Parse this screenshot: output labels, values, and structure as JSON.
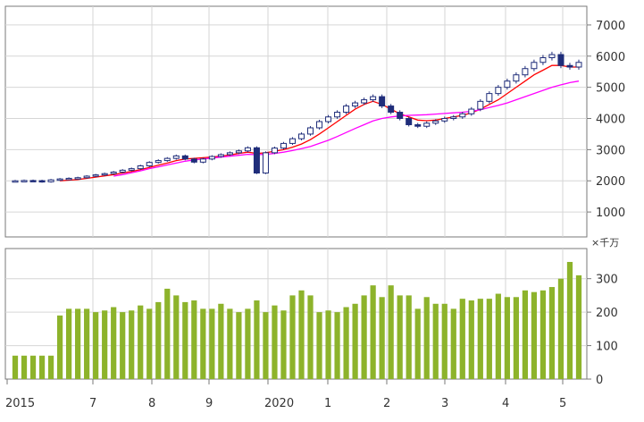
{
  "chart_data": [
    {
      "type": "candlestick",
      "title": "",
      "y_ticks": [
        "7000",
        "6000",
        "5000",
        "4000",
        "3000",
        "2000",
        "1000"
      ],
      "y_tick_values": [
        7000,
        6000,
        5000,
        4000,
        3000,
        2000,
        1000
      ],
      "ylim": [
        200,
        7600
      ],
      "grid": true,
      "x_tick_labels": [
        "2015",
        "7",
        "8",
        "9",
        "2020",
        "1",
        "2",
        "3",
        "4",
        "5"
      ],
      "price_close": [
        2000,
        2010,
        2005,
        1970,
        2030,
        2060,
        2080,
        2100,
        2150,
        2190,
        2230,
        2280,
        2340,
        2390,
        2480,
        2590,
        2650,
        2720,
        2800,
        2700,
        2600,
        2700,
        2780,
        2840,
        2900,
        2960,
        3060,
        2250,
        2900,
        3050,
        3200,
        3350,
        3500,
        3700,
        3900,
        4050,
        4200,
        4400,
        4500,
        4600,
        4700,
        4400,
        4200,
        4000,
        3800,
        3750,
        3850,
        3920,
        4000,
        4050,
        4150,
        4300,
        4550,
        4800,
        5000,
        5200,
        5400,
        5600,
        5800,
        5950,
        6050,
        5700,
        5650,
        5800
      ],
      "series": [
        {
          "name": "",
          "color": "#ff0000",
          "values": [
            null,
            null,
            null,
            null,
            null,
            2000,
            2020,
            2040,
            2080,
            2120,
            2160,
            2200,
            2250,
            2300,
            2360,
            2430,
            2500,
            2570,
            2650,
            2700,
            2720,
            2740,
            2760,
            2790,
            2830,
            2880,
            2920,
            2880,
            2900,
            2950,
            3000,
            3080,
            3180,
            3320,
            3500,
            3700,
            3900,
            4100,
            4300,
            4450,
            4550,
            4450,
            4300,
            4150,
            4050,
            3950,
            3930,
            3950,
            4000,
            4050,
            4100,
            4180,
            4300,
            4450,
            4600,
            4800,
            5000,
            5200,
            5400,
            5550,
            5700,
            5700,
            5650,
            5650
          ]
        },
        {
          "name": "",
          "color": "#ff00ff",
          "values": [
            null,
            null,
            null,
            null,
            null,
            null,
            null,
            null,
            null,
            null,
            null,
            2150,
            2200,
            2260,
            2320,
            2390,
            2450,
            2510,
            2570,
            2630,
            2670,
            2700,
            2730,
            2760,
            2790,
            2820,
            2850,
            2840,
            2850,
            2880,
            2920,
            2970,
            3030,
            3100,
            3200,
            3300,
            3420,
            3550,
            3680,
            3800,
            3920,
            4000,
            4050,
            4080,
            4100,
            4110,
            4120,
            4140,
            4160,
            4180,
            4200,
            4230,
            4280,
            4350,
            4420,
            4500,
            4600,
            4700,
            4800,
            4900,
            5000,
            5080,
            5150,
            5200
          ]
        }
      ]
    },
    {
      "type": "bar",
      "title": "",
      "unit_label": "×千万",
      "y_ticks": [
        "300",
        "200",
        "100",
        "0"
      ],
      "y_tick_values": [
        300,
        200,
        100,
        0
      ],
      "ylim": [
        0,
        390
      ],
      "grid": true,
      "color": "#8db32b",
      "values": [
        70,
        70,
        70,
        70,
        70,
        190,
        210,
        210,
        210,
        200,
        205,
        215,
        200,
        205,
        220,
        210,
        230,
        270,
        250,
        230,
        235,
        210,
        210,
        225,
        210,
        200,
        210,
        235,
        200,
        220,
        205,
        250,
        265,
        250,
        200,
        205,
        200,
        215,
        225,
        250,
        280,
        245,
        280,
        250,
        250,
        210,
        245,
        225,
        225,
        210,
        240,
        235,
        240,
        240,
        255,
        245,
        245,
        265,
        260,
        265,
        275,
        300,
        350,
        310
      ]
    }
  ]
}
